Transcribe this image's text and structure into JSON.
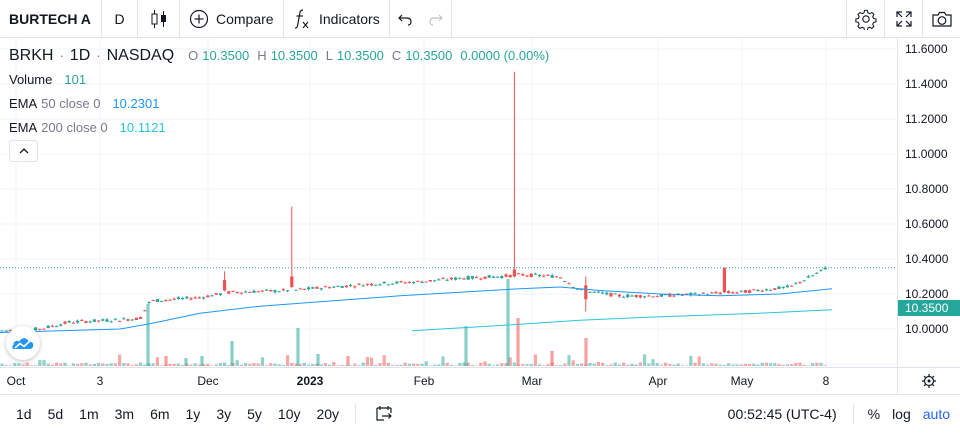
{
  "toolbar": {
    "symbol": "BURTECH A",
    "interval": "D",
    "compare_label": "Compare",
    "indicators_label": "Indicators"
  },
  "legend": {
    "symbol": "BRKH",
    "interval": "1D",
    "exchange": "NASDAQ",
    "ohlc": {
      "o_label": "O",
      "o": "10.3500",
      "h_label": "H",
      "h": "10.3500",
      "l_label": "L",
      "l": "10.3500",
      "c_label": "C",
      "c": "10.3500",
      "change": "0.0000 (0.00%)"
    },
    "volume": {
      "name": "Volume",
      "value": "101"
    },
    "ema50": {
      "name": "EMA",
      "params": "50 close 0",
      "value": "10.2301"
    },
    "ema200": {
      "name": "EMA",
      "params": "200 close 0",
      "value": "10.1121"
    }
  },
  "price_axis": {
    "labels": [
      "11.6000",
      "11.4000",
      "11.2000",
      "11.0000",
      "10.8000",
      "10.6000",
      "10.4000",
      "10.2000",
      "10.0000"
    ],
    "last_price": "10.3500"
  },
  "time_axis": {
    "labels": [
      "Oct",
      "3",
      "Dec",
      "2023",
      "Feb",
      "Mar",
      "Apr",
      "May",
      "8"
    ]
  },
  "bottom_bar": {
    "ranges": [
      "1d",
      "5d",
      "1m",
      "3m",
      "6m",
      "1y",
      "3y",
      "5y",
      "10y",
      "20y"
    ],
    "clock": "00:52:45 (UTC-4)",
    "percent": "%",
    "log": "log",
    "auto": "auto"
  },
  "colors": {
    "up": "#26a69a",
    "down": "#ef5350",
    "ema50": "#2196f3",
    "ema200": "#26c6da",
    "accent": "#2962ff"
  },
  "icons": [
    "candles-icon",
    "plus-circle-icon",
    "fx-icon",
    "undo-icon",
    "redo-icon",
    "gear-icon",
    "fullscreen-icon",
    "camera-icon",
    "calendar-range-icon",
    "logo-icon",
    "chevron-up-icon"
  ],
  "chart_data": {
    "type": "candlestick",
    "x_range": [
      "Sep 2022",
      "May 2023"
    ],
    "ylim": [
      9.9,
      11.65
    ],
    "series": [
      {
        "name": "EMA 50 close 0",
        "last": 10.2301
      },
      {
        "name": "EMA 200 close 0",
        "last": 10.1121
      },
      {
        "name": "Volume",
        "last": 101
      }
    ]
  }
}
